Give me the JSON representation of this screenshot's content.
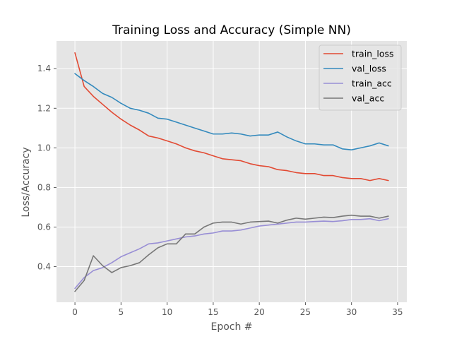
{
  "chart_data": {
    "type": "line",
    "title": "Training Loss and Accuracy (Simple NN)",
    "xlabel": "Epoch #",
    "ylabel": "Loss/Accuracy",
    "xlim": [
      -2,
      36
    ],
    "ylim": [
      0.22,
      1.54
    ],
    "xticks": [
      0,
      5,
      10,
      15,
      20,
      25,
      30,
      35
    ],
    "yticks": [
      0.4,
      0.6,
      0.8,
      1.0,
      1.2,
      1.4
    ],
    "ytick_labels": [
      "0.4",
      "0.6",
      "0.8",
      "1.0",
      "1.2",
      "1.4"
    ],
    "grid": true,
    "legend_position": "top-right",
    "x": [
      0,
      1,
      2,
      3,
      4,
      5,
      6,
      7,
      8,
      9,
      10,
      11,
      12,
      13,
      14,
      15,
      16,
      17,
      18,
      19,
      20,
      21,
      22,
      23,
      24,
      25,
      26,
      27,
      28,
      29,
      30,
      31,
      32,
      33,
      34
    ],
    "series": [
      {
        "name": "train_loss",
        "color": "#E24A33",
        "values": [
          1.48,
          1.31,
          1.26,
          1.22,
          1.18,
          1.145,
          1.115,
          1.09,
          1.06,
          1.05,
          1.035,
          1.02,
          1.0,
          0.985,
          0.975,
          0.96,
          0.945,
          0.94,
          0.935,
          0.92,
          0.91,
          0.905,
          0.89,
          0.885,
          0.875,
          0.87,
          0.87,
          0.86,
          0.86,
          0.85,
          0.845,
          0.845,
          0.835,
          0.845,
          0.835
        ]
      },
      {
        "name": "val_loss",
        "color": "#348ABD",
        "values": [
          1.375,
          1.34,
          1.31,
          1.275,
          1.255,
          1.225,
          1.2,
          1.19,
          1.175,
          1.15,
          1.145,
          1.13,
          1.115,
          1.1,
          1.085,
          1.07,
          1.07,
          1.075,
          1.07,
          1.06,
          1.065,
          1.065,
          1.08,
          1.055,
          1.035,
          1.02,
          1.02,
          1.015,
          1.015,
          0.995,
          0.99,
          1.0,
          1.01,
          1.025,
          1.01
        ]
      },
      {
        "name": "train_acc",
        "color": "#988ED5",
        "values": [
          0.29,
          0.345,
          0.38,
          0.395,
          0.42,
          0.45,
          0.47,
          0.49,
          0.515,
          0.52,
          0.53,
          0.54,
          0.55,
          0.555,
          0.565,
          0.57,
          0.58,
          0.58,
          0.585,
          0.595,
          0.605,
          0.61,
          0.615,
          0.62,
          0.625,
          0.625,
          0.628,
          0.63,
          0.628,
          0.632,
          0.638,
          0.638,
          0.642,
          0.632,
          0.642
        ]
      },
      {
        "name": "val_acc",
        "color": "#777777",
        "values": [
          0.275,
          0.33,
          0.455,
          0.405,
          0.37,
          0.395,
          0.405,
          0.42,
          0.46,
          0.495,
          0.515,
          0.515,
          0.565,
          0.565,
          0.6,
          0.62,
          0.625,
          0.625,
          0.615,
          0.625,
          0.628,
          0.63,
          0.62,
          0.635,
          0.645,
          0.64,
          0.645,
          0.65,
          0.648,
          0.655,
          0.66,
          0.655,
          0.655,
          0.645,
          0.655
        ]
      }
    ]
  }
}
